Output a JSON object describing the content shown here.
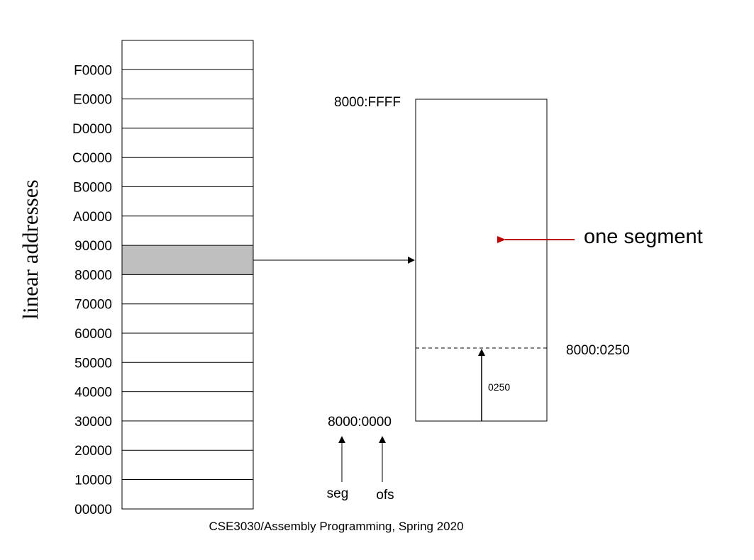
{
  "side_label": "linear addresses",
  "memory_addresses": [
    "F0000",
    "E0000",
    "D0000",
    "C0000",
    "B0000",
    "A0000",
    "90000",
    "80000",
    "70000",
    "60000",
    "50000",
    "40000",
    "30000",
    "20000",
    "10000",
    "00000"
  ],
  "highlight_color": "#bfbfbf",
  "accent_color": "#c00000",
  "segment": {
    "top_label": "8000:FFFF",
    "bottom_label": "8000:0000",
    "offset_mark_label": "8000:0250",
    "offset_value": "0250",
    "callout": "one segment"
  },
  "address_parts": {
    "seg": "seg",
    "ofs": "ofs"
  },
  "footer": "CSE3030/Assembly Programming, Spring 2020"
}
